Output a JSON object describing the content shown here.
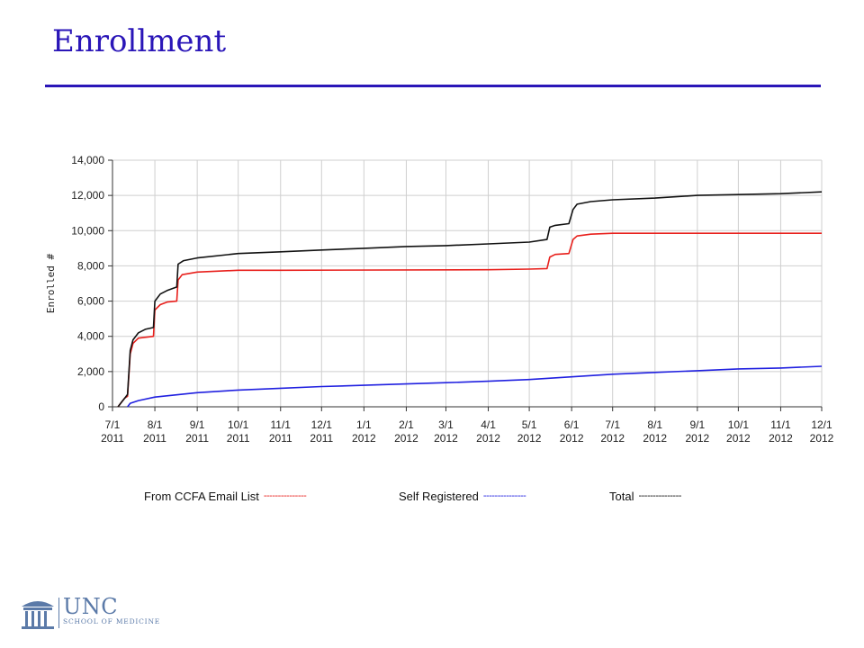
{
  "slide": {
    "title": "Enrollment"
  },
  "logo": {
    "name": "UNC",
    "subtitle": "SCHOOL OF MEDICINE",
    "color": "#5b7aa8"
  },
  "chart_data": {
    "type": "line",
    "title": "",
    "xlabel": "",
    "ylabel": "Enrolled #",
    "ylim": [
      0,
      14000
    ],
    "yticks": [
      0,
      2000,
      4000,
      6000,
      8000,
      10000,
      12000,
      14000
    ],
    "ytick_labels": [
      "0",
      "2,000",
      "4,000",
      "6,000",
      "8,000",
      "10,000",
      "12,000",
      "14,000"
    ],
    "xticks": [
      "2011-07-01",
      "2011-08-01",
      "2011-09-01",
      "2011-10-01",
      "2011-11-01",
      "2011-12-01",
      "2012-01-01",
      "2012-02-01",
      "2012-03-01",
      "2012-04-01",
      "2012-05-01",
      "2012-06-01",
      "2012-07-01",
      "2012-08-01",
      "2012-09-01",
      "2012-10-01",
      "2012-11-01",
      "2012-12-01"
    ],
    "xtick_labels": [
      [
        "7/1",
        "2011"
      ],
      [
        "8/1",
        "2011"
      ],
      [
        "9/1",
        "2011"
      ],
      [
        "10/1",
        "2011"
      ],
      [
        "11/1",
        "2011"
      ],
      [
        "12/1",
        "2011"
      ],
      [
        "1/1",
        "2012"
      ],
      [
        "2/1",
        "2012"
      ],
      [
        "3/1",
        "2012"
      ],
      [
        "4/1",
        "2012"
      ],
      [
        "5/1",
        "2012"
      ],
      [
        "6/1",
        "2012"
      ],
      [
        "7/1",
        "2012"
      ],
      [
        "8/1",
        "2012"
      ],
      [
        "9/1",
        "2012"
      ],
      [
        "10/1",
        "2012"
      ],
      [
        "11/1",
        "2012"
      ],
      [
        "12/1",
        "2012"
      ]
    ],
    "grid": true,
    "legend_position": "bottom",
    "series": [
      {
        "name": "From CCFA Email List",
        "legend_dash": "---------------",
        "color": "#e8201c",
        "points": [
          [
            "2011-07-05",
            0
          ],
          [
            "2011-07-08",
            300
          ],
          [
            "2011-07-10",
            500
          ],
          [
            "2011-07-12",
            600
          ],
          [
            "2011-07-14",
            3000
          ],
          [
            "2011-07-16",
            3600
          ],
          [
            "2011-07-20",
            3900
          ],
          [
            "2011-07-31",
            4000
          ],
          [
            "2011-08-01",
            5500
          ],
          [
            "2011-08-05",
            5800
          ],
          [
            "2011-08-10",
            5950
          ],
          [
            "2011-08-17",
            6000
          ],
          [
            "2011-08-18",
            7200
          ],
          [
            "2011-08-21",
            7500
          ],
          [
            "2011-09-01",
            7650
          ],
          [
            "2011-10-01",
            7750
          ],
          [
            "2011-11-01",
            7750
          ],
          [
            "2012-04-01",
            7780
          ],
          [
            "2012-05-01",
            7820
          ],
          [
            "2012-05-14",
            7850
          ],
          [
            "2012-05-16",
            8500
          ],
          [
            "2012-05-20",
            8650
          ],
          [
            "2012-05-30",
            8700
          ],
          [
            "2012-06-02",
            9500
          ],
          [
            "2012-06-05",
            9700
          ],
          [
            "2012-06-15",
            9800
          ],
          [
            "2012-07-01",
            9850
          ],
          [
            "2012-12-01",
            9850
          ]
        ]
      },
      {
        "name": "Self Registered",
        "legend_dash": "---------------",
        "color": "#2020e0",
        "points": [
          [
            "2011-07-12",
            0
          ],
          [
            "2011-07-14",
            200
          ],
          [
            "2011-07-20",
            350
          ],
          [
            "2011-08-01",
            550
          ],
          [
            "2011-09-01",
            800
          ],
          [
            "2011-10-01",
            950
          ],
          [
            "2011-11-01",
            1050
          ],
          [
            "2011-12-01",
            1150
          ],
          [
            "2012-01-01",
            1220
          ],
          [
            "2012-02-01",
            1300
          ],
          [
            "2012-03-01",
            1370
          ],
          [
            "2012-04-01",
            1450
          ],
          [
            "2012-05-01",
            1550
          ],
          [
            "2012-06-01",
            1700
          ],
          [
            "2012-07-01",
            1850
          ],
          [
            "2012-08-01",
            1950
          ],
          [
            "2012-09-01",
            2050
          ],
          [
            "2012-10-01",
            2150
          ],
          [
            "2012-11-01",
            2200
          ],
          [
            "2012-12-01",
            2300
          ]
        ]
      },
      {
        "name": "Total",
        "legend_dash": "---------------",
        "color": "#111111",
        "points": [
          [
            "2011-07-05",
            0
          ],
          [
            "2011-07-08",
            300
          ],
          [
            "2011-07-10",
            500
          ],
          [
            "2011-07-12",
            700
          ],
          [
            "2011-07-14",
            3200
          ],
          [
            "2011-07-16",
            3800
          ],
          [
            "2011-07-20",
            4200
          ],
          [
            "2011-07-25",
            4400
          ],
          [
            "2011-07-31",
            4500
          ],
          [
            "2011-08-01",
            6000
          ],
          [
            "2011-08-05",
            6400
          ],
          [
            "2011-08-10",
            6600
          ],
          [
            "2011-08-17",
            6800
          ],
          [
            "2011-08-18",
            8100
          ],
          [
            "2011-08-22",
            8300
          ],
          [
            "2011-09-01",
            8450
          ],
          [
            "2011-10-01",
            8700
          ],
          [
            "2011-11-01",
            8800
          ],
          [
            "2011-12-01",
            8900
          ],
          [
            "2012-01-01",
            9000
          ],
          [
            "2012-02-01",
            9100
          ],
          [
            "2012-03-01",
            9150
          ],
          [
            "2012-04-01",
            9250
          ],
          [
            "2012-05-01",
            9350
          ],
          [
            "2012-05-14",
            9500
          ],
          [
            "2012-05-16",
            10200
          ],
          [
            "2012-05-20",
            10300
          ],
          [
            "2012-05-30",
            10400
          ],
          [
            "2012-06-02",
            11200
          ],
          [
            "2012-06-05",
            11500
          ],
          [
            "2012-06-15",
            11650
          ],
          [
            "2012-07-01",
            11750
          ],
          [
            "2012-08-01",
            11850
          ],
          [
            "2012-09-01",
            12000
          ],
          [
            "2012-10-01",
            12050
          ],
          [
            "2012-11-01",
            12100
          ],
          [
            "2012-12-01",
            12200
          ]
        ]
      }
    ]
  }
}
